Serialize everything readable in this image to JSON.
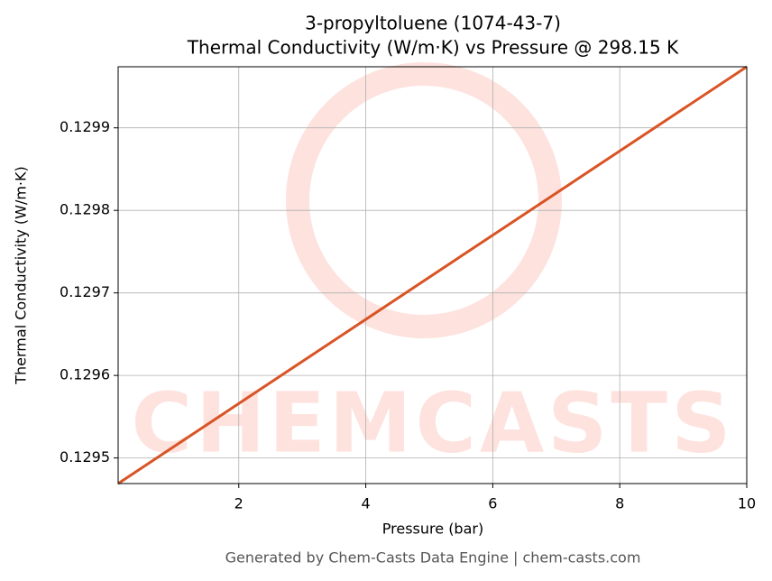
{
  "chart_data": {
    "type": "line",
    "title": "3-propyltoluene (1074-43-7)",
    "subtitle": "Thermal Conductivity (W/m·K) vs Pressure @ 298.15 K",
    "x_label": "Pressure (bar)",
    "y_label": "Thermal Conductivity (W/m·K)",
    "footer": "Generated by Chem-Casts Data Engine | chem-casts.com",
    "watermark": "CHEMCASTS",
    "x": [
      0.1,
      10
    ],
    "series": [
      {
        "name": "Thermal Conductivity",
        "color": "#d95425",
        "values": [
          0.129469,
          0.129974
        ]
      }
    ],
    "xlim": [
      0.1,
      10
    ],
    "xticks": [
      2,
      4,
      6,
      8,
      10
    ],
    "ylim": [
      0.129469,
      0.129974
    ],
    "yticks": [
      0.1295,
      0.1296,
      0.1297,
      0.1298,
      0.1299
    ],
    "grid": true
  }
}
